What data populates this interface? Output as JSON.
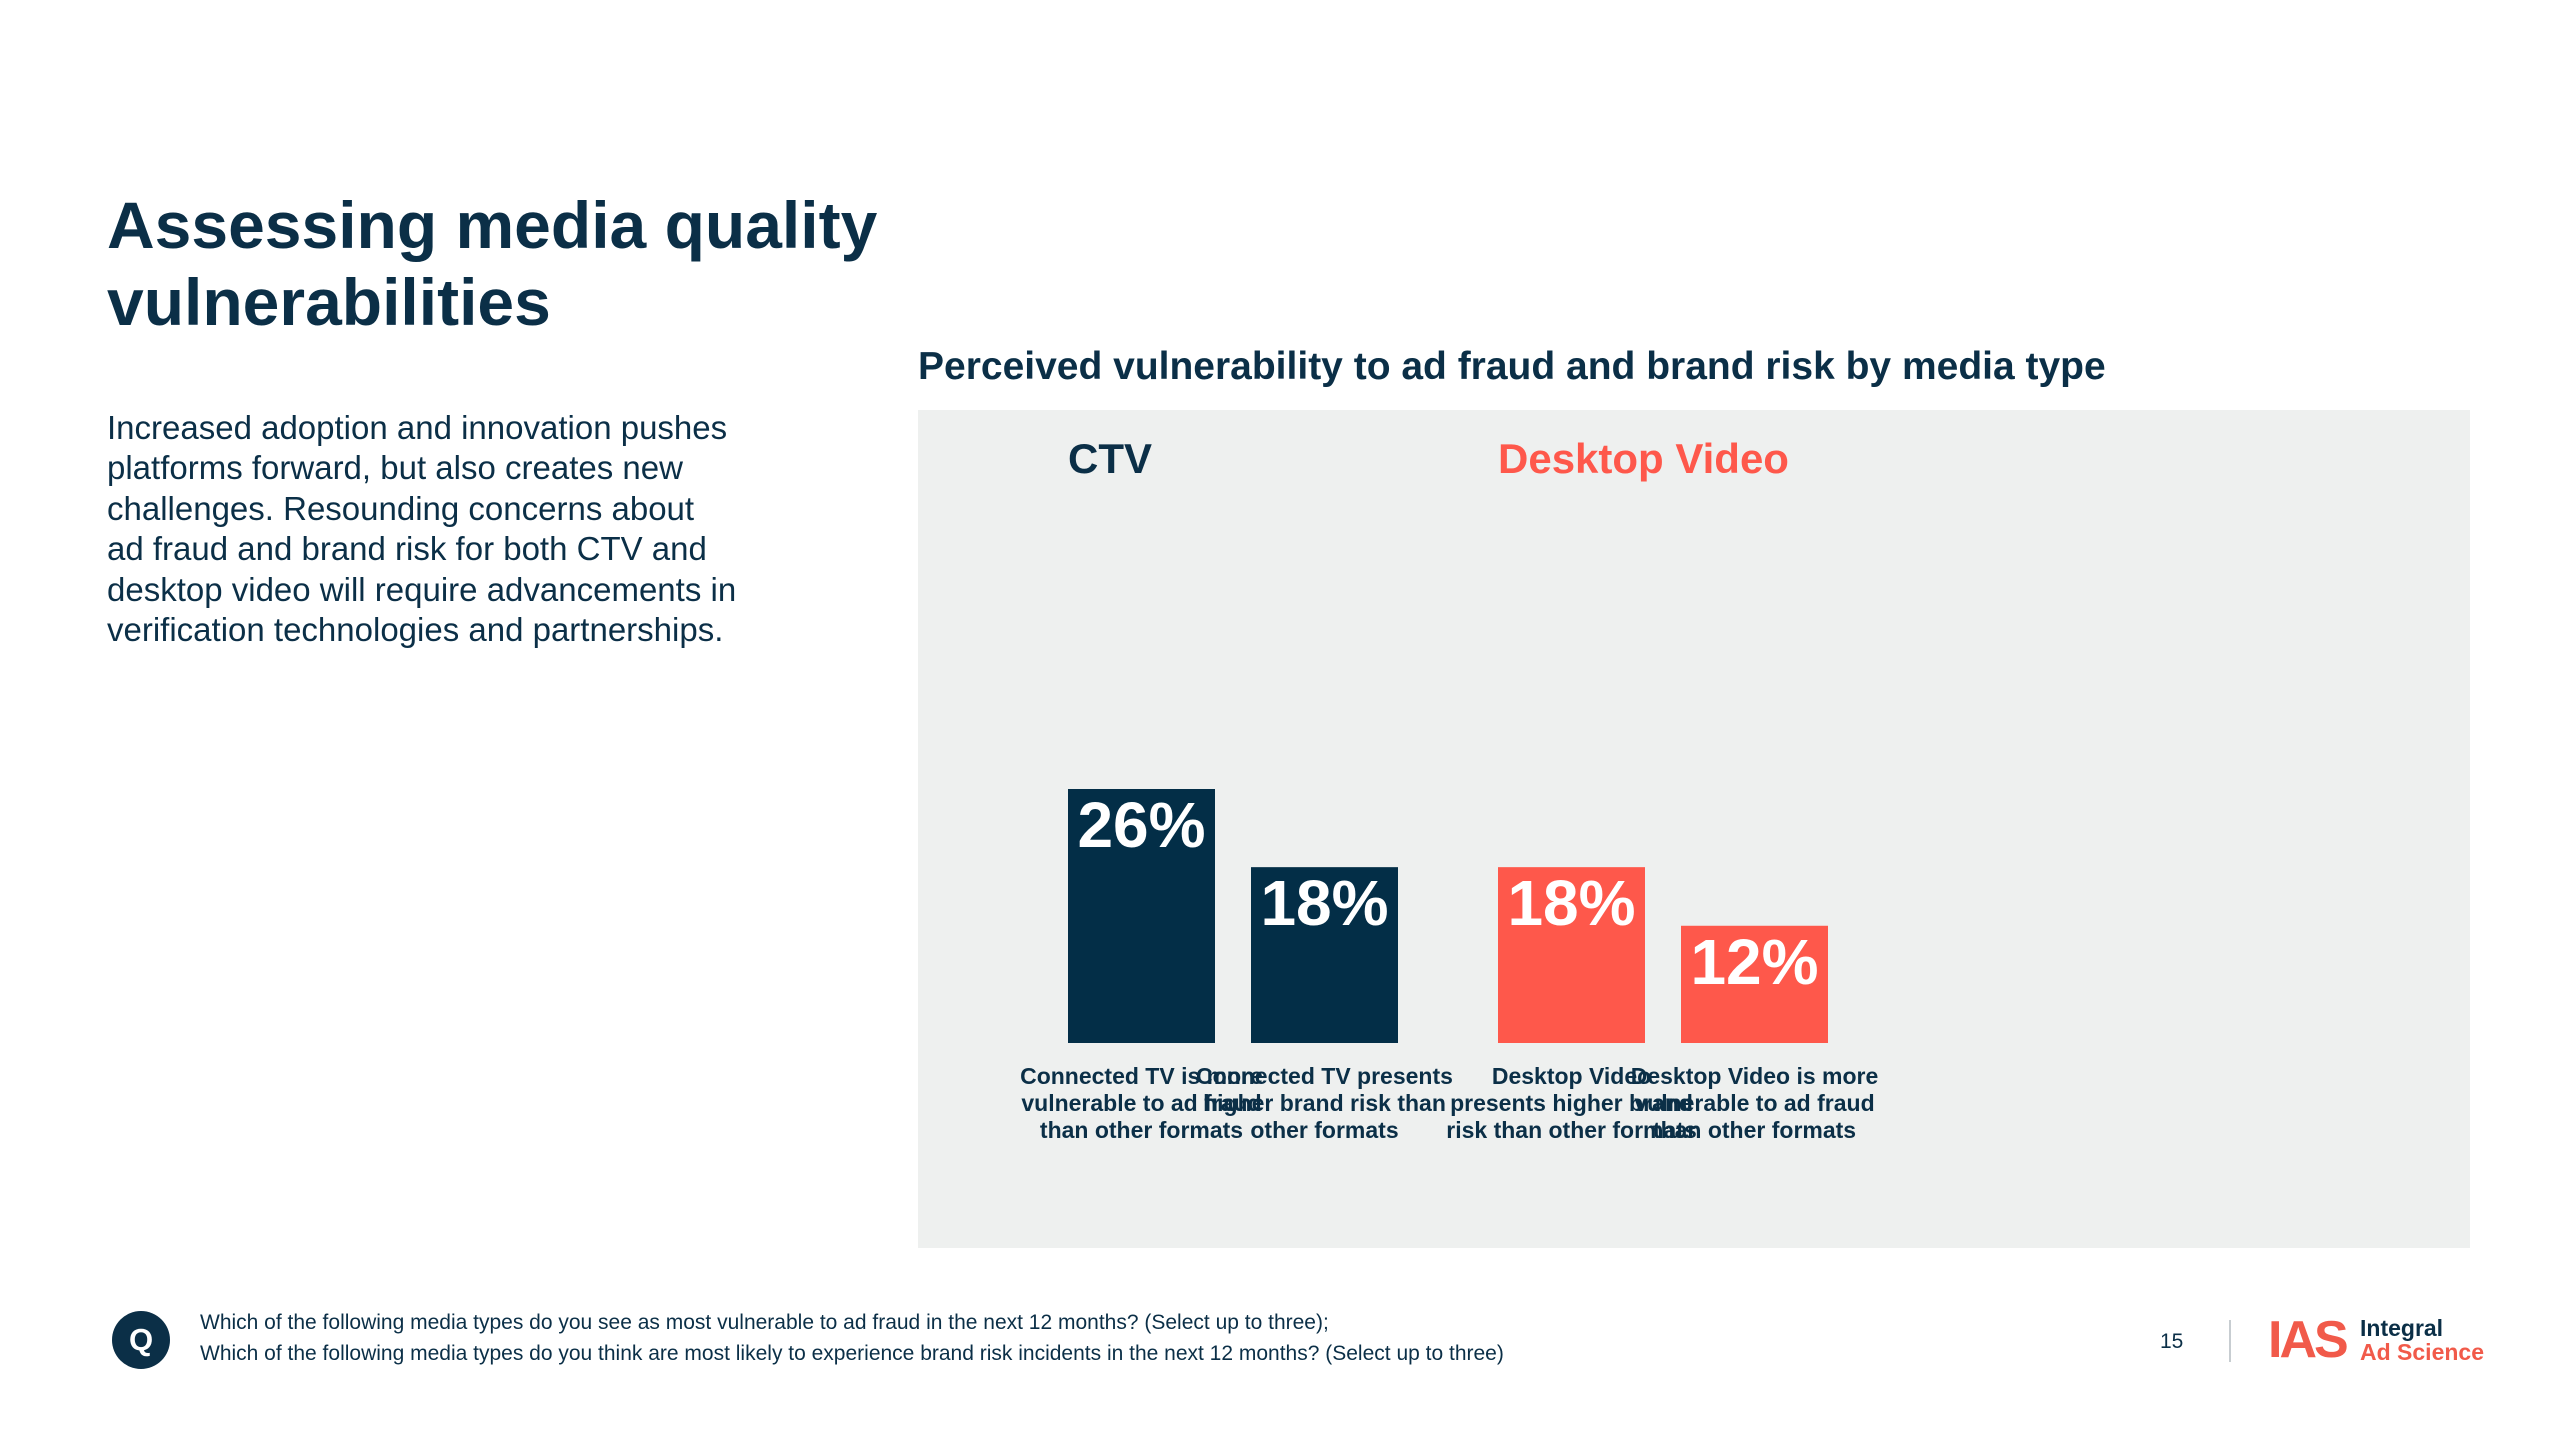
{
  "heading": {
    "title_line1": "Assessing media quality",
    "title_line2": "vulnerabilities"
  },
  "intro_lines": [
    "Increased adoption and innovation pushes",
    "platforms forward, but also creates new",
    "challenges. Resounding concerns about",
    "ad fraud and brand risk for both CTV and",
    "desktop video will require advancements in",
    "verification technologies and partnerships."
  ],
  "chart_data": {
    "type": "bar",
    "title": "Perceived vulnerability to ad fraud and brand risk by media type",
    "unit": "%",
    "groups": [
      {
        "name": "CTV",
        "color": "#032e47",
        "bars": [
          {
            "value": 26,
            "label": "26%",
            "category_lines": [
              "Connected TV is more",
              "vulnerable to ad fraud",
              "than other formats"
            ]
          },
          {
            "value": 18,
            "label": "18%",
            "category_lines": [
              "Connected TV presents",
              "higher brand risk than",
              "other formats"
            ]
          }
        ]
      },
      {
        "name": "Desktop Video",
        "color": "#fe584b",
        "bars": [
          {
            "value": 18,
            "label": "18%",
            "category_lines": [
              "Desktop Video",
              "presents higher brand",
              "risk than other formats"
            ]
          },
          {
            "value": 12,
            "label": "12%",
            "category_lines": [
              "Desktop Video is more",
              "vulnerable to ad fraud",
              "than other formats"
            ]
          }
        ]
      }
    ],
    "ylim": [
      0,
      26
    ],
    "grid": false,
    "legend": "none"
  },
  "footer": {
    "badge": "Q",
    "question_lines": [
      "Which of the following media types do you see as most vulnerable to ad fraud in the next 12 months? (Select up to three);",
      "Which of the following media types do you think are most likely to experience brand risk incidents in the next 12 months? (Select up to three)"
    ],
    "page_number": "15",
    "logo": {
      "mark": "IAS",
      "line1": "Integral",
      "line2": "Ad Science",
      "mark_color": "#f15a4a",
      "line1_color": "#0b2f47",
      "line2_color": "#f15a4a"
    }
  }
}
